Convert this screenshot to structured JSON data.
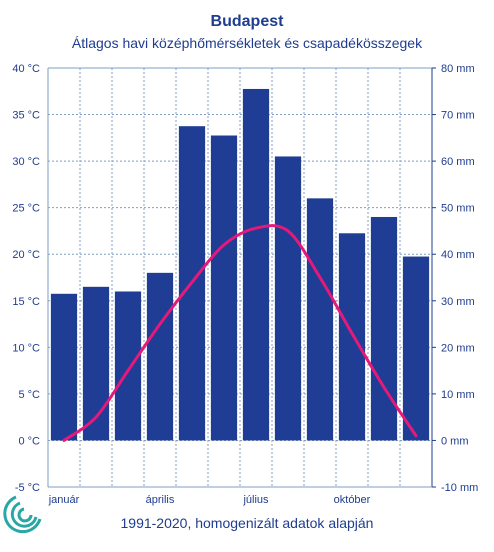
{
  "colors": {
    "bar": "#1f3d94",
    "line": "#e6197a",
    "grid": "#7f9fc6",
    "axis_text": "#1f3d8f",
    "logo": "#2aa7a5"
  },
  "chart_data": {
    "type": "bar+line",
    "title": "Budapest",
    "subtitle": "Átlagos havi középhőmérsékletek  és csapadékösszegek",
    "footnote": "1991-2020, homogenizált adatok alapján",
    "categories": [
      "1",
      "2",
      "3",
      "4",
      "5",
      "6",
      "7",
      "8",
      "9",
      "10",
      "11",
      "12"
    ],
    "x_tick_labels": [
      {
        "month": 1,
        "label": "január"
      },
      {
        "month": 4,
        "label": "április"
      },
      {
        "month": 7,
        "label": "július"
      },
      {
        "month": 10,
        "label": "október"
      }
    ],
    "series": [
      {
        "type": "bar",
        "axis": "right",
        "values": [
          31.5,
          33,
          32,
          36,
          67.5,
          65.5,
          75.5,
          61,
          52,
          44.5,
          48,
          39.5
        ]
      },
      {
        "type": "line",
        "axis": "left",
        "values": [
          0.0,
          2.5,
          7.5,
          12.5,
          17.0,
          21.0,
          22.8,
          22.5,
          17.5,
          11.5,
          5.7,
          0.5
        ]
      }
    ],
    "y_left": {
      "min": -5,
      "max": 40,
      "step": 5,
      "ticks": [
        "-5 °C",
        "0 °C",
        "5 °C",
        "10 °C",
        "15 °C",
        "20 °C",
        "25 °C",
        "30 °C",
        "35 °C",
        "40 °C"
      ]
    },
    "y_right": {
      "min": -10,
      "max": 80,
      "step": 10,
      "ticks": [
        "-10 mm",
        "0 mm",
        "10 mm",
        "20 mm",
        "30 mm",
        "40 mm",
        "50 mm",
        "60 mm",
        "70 mm",
        "80 mm"
      ]
    },
    "grid": true
  }
}
